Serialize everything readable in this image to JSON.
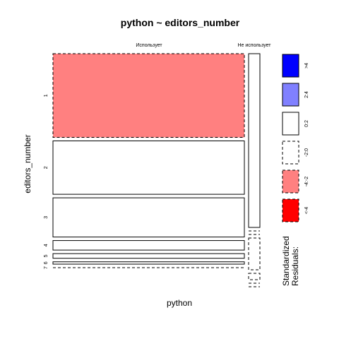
{
  "chart_data": {
    "type": "mosaic",
    "title": "python ~ editors_number",
    "xlabel": "python",
    "ylabel": "editors_number",
    "columns": [
      "Использует",
      "Не использует"
    ],
    "column_proportions": [
      0.97,
      0.03
    ],
    "rows": [
      "1",
      "2",
      "3",
      "4",
      "5",
      "6",
      "7"
    ],
    "row_proportions": [
      [
        0.395,
        0.252,
        0.185,
        0.045,
        0.022,
        0.011,
        0.0
      ],
      [
        0.82,
        0.0,
        0.0,
        0.15,
        0.03,
        0.0,
        0.0
      ]
    ],
    "residual_class": [
      [
        "-4:-2",
        "0:2",
        "0:2",
        "0:2",
        "0:2",
        "0:2",
        "0:2"
      ],
      [
        "0:2",
        "0:2",
        "-2:0",
        "-2:0",
        "-2:0",
        "-2:0",
        "-2:0"
      ]
    ],
    "legend": {
      "title_line1": "Standardized",
      "title_line2": "Residuals:",
      "entries": [
        {
          "label": ">4",
          "color": "#0000ff",
          "dashed": false
        },
        {
          "label": "2:4",
          "color": "#8080ff",
          "dashed": false
        },
        {
          "label": "0:2",
          "color": "#ffffff",
          "dashed": false
        },
        {
          "label": "-2:0",
          "color": "#ffffff",
          "dashed": true
        },
        {
          "label": "-4:-2",
          "color": "#ff8080",
          "dashed": true
        },
        {
          "label": "<-4",
          "color": "#ff0000",
          "dashed": true
        }
      ]
    }
  }
}
